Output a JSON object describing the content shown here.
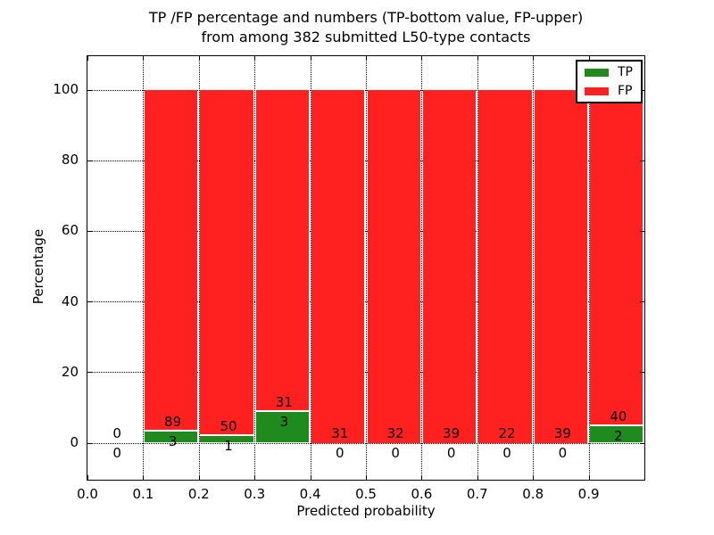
{
  "chart_data": {
    "type": "bar",
    "stacked": true,
    "title": "TP /FP percentage and numbers (TP-bottom value, FP-upper) from among 382 submitted L50-type contacts",
    "title_lines": [
      "TP /FP percentage and numbers (TP-bottom value, FP-upper)",
      "from among 382 submitted L50-type contacts"
    ],
    "xlabel": "Predicted probability",
    "ylabel": "Percentage",
    "xlim": [
      0.0,
      1.0
    ],
    "ylim": [
      -10,
      110
    ],
    "xticks": [
      "0.0",
      "0.1",
      "0.2",
      "0.3",
      "0.4",
      "0.5",
      "0.6",
      "0.7",
      "0.8",
      "0.9"
    ],
    "yticks": [
      0,
      20,
      40,
      60,
      80,
      100
    ],
    "grid": true,
    "legend_position": "upper right",
    "series": [
      {
        "name": "TP",
        "color": "#1f8b1f"
      },
      {
        "name": "FP",
        "color": "#ff2020"
      }
    ],
    "bar_unit": "percent of bin total (TP+FP stacked to 100%)",
    "bins": [
      {
        "range": [
          0.0,
          0.1
        ],
        "tp": 0,
        "fp": 0
      },
      {
        "range": [
          0.1,
          0.2
        ],
        "tp": 3,
        "fp": 89
      },
      {
        "range": [
          0.2,
          0.3
        ],
        "tp": 1,
        "fp": 50
      },
      {
        "range": [
          0.3,
          0.4
        ],
        "tp": 3,
        "fp": 31
      },
      {
        "range": [
          0.4,
          0.5
        ],
        "tp": 0,
        "fp": 31
      },
      {
        "range": [
          0.5,
          0.6
        ],
        "tp": 0,
        "fp": 32
      },
      {
        "range": [
          0.6,
          0.7
        ],
        "tp": 0,
        "fp": 39
      },
      {
        "range": [
          0.7,
          0.8
        ],
        "tp": 0,
        "fp": 22
      },
      {
        "range": [
          0.8,
          0.9
        ],
        "tp": 0,
        "fp": 39
      },
      {
        "range": [
          0.9,
          1.0
        ],
        "tp": 2,
        "fp": 40
      }
    ],
    "total_submitted": 382
  }
}
